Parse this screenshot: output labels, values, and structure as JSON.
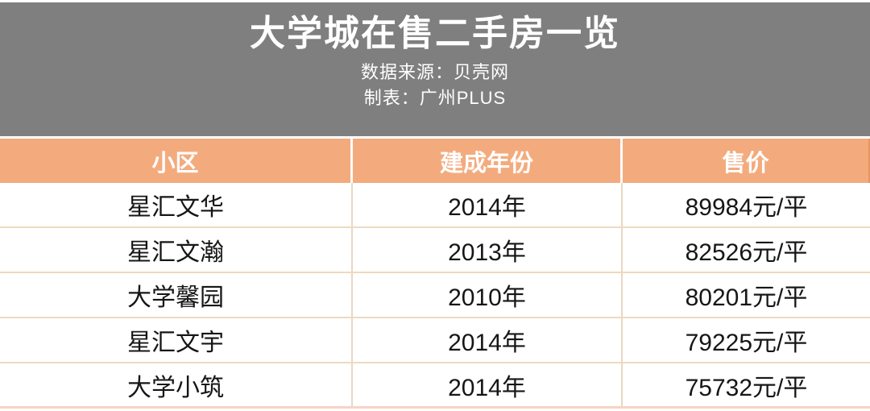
{
  "banner": {
    "title": "大学城在售二手房一览",
    "source_line": "数据来源：贝壳网",
    "credit_line": "制表：广州PLUS"
  },
  "table": {
    "columns": [
      "小区",
      "建成年份",
      "售价"
    ],
    "rows": [
      [
        "星汇文华",
        "2014年",
        "89984元/平"
      ],
      [
        "星汇文瀚",
        "2013年",
        "82526元/平"
      ],
      [
        "大学馨园",
        "2010年",
        "80201元/平"
      ],
      [
        "星汇文宇",
        "2014年",
        "79225元/平"
      ],
      [
        "大学小筑",
        "2014年",
        "75732元/平"
      ]
    ]
  },
  "chart_data": {
    "type": "table",
    "title": "大学城在售二手房一览",
    "subtitle": [
      "数据来源：贝壳网",
      "制表：广州PLUS"
    ],
    "columns": [
      "小区",
      "建成年份",
      "售价"
    ],
    "rows": [
      {
        "community": "星汇文华",
        "year_built": 2014,
        "price_per_sqm_yuan": 89984,
        "price_label": "89984元/平",
        "year_label": "2014年"
      },
      {
        "community": "星汇文瀚",
        "year_built": 2013,
        "price_per_sqm_yuan": 82526,
        "price_label": "82526元/平",
        "year_label": "2013年"
      },
      {
        "community": "大学馨园",
        "year_built": 2010,
        "price_per_sqm_yuan": 80201,
        "price_label": "80201元/平",
        "year_label": "2010年"
      },
      {
        "community": "星汇文宇",
        "year_built": 2014,
        "price_per_sqm_yuan": 79225,
        "price_label": "79225元/平",
        "year_label": "2014年"
      },
      {
        "community": "大学小筑",
        "year_built": 2014,
        "price_per_sqm_yuan": 75732,
        "price_label": "75732元/平",
        "year_label": "2014年"
      }
    ]
  },
  "colors": {
    "banner_bg": "#7F7F80",
    "banner_text": "#FFFFFF",
    "table_header_bg": "#F3AB7E",
    "table_header_text": "#FFFFFF",
    "row_divider": "#EFD9C0",
    "column_divider": "#E7D8C2",
    "bottom_edge": "#F7D4C4",
    "cell_text": "#161616"
  }
}
